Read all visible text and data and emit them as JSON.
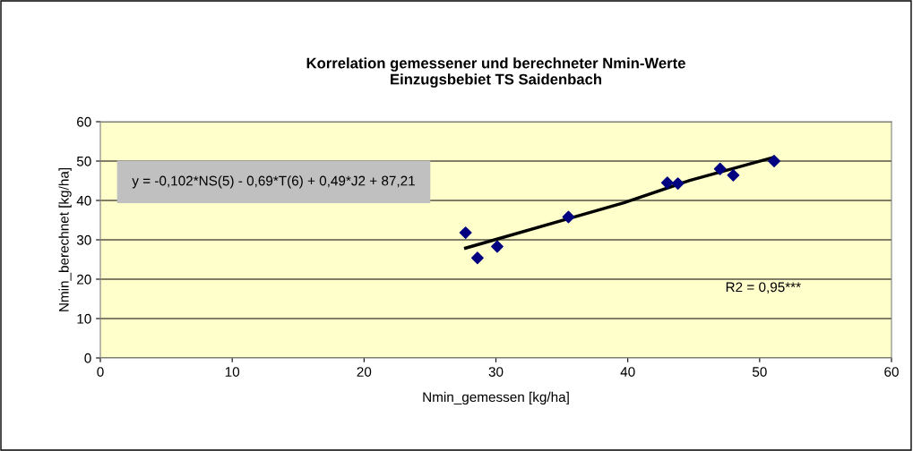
{
  "chart_data": {
    "type": "scatter",
    "title": "Korrelation gemessener und berechneter Nmin-Werte\nEinzugsbebiet TS Saidenbach",
    "xlabel": "Nmin_gemessen [kg/ha]",
    "ylabel": "Nmin_berechnet [kg/ha]",
    "series": [
      {
        "color": "#000080",
        "marker": "diamond",
        "x": [
          27.7,
          28.6,
          30.1,
          35.5,
          43.0,
          43.8,
          47.0,
          48.0,
          51.1
        ],
        "values": [
          31.8,
          25.4,
          28.3,
          35.8,
          44.5,
          44.3,
          48.0,
          46.4,
          50.0
        ]
      },
      {
        "type": "line",
        "color": "#000000",
        "marker": "none",
        "x": [
          27.7,
          39.7,
          44.7,
          51.0
        ],
        "values": [
          27.9,
          39.4,
          45.1,
          50.9
        ]
      }
    ],
    "annotations": [
      "y = -0,102*NS(5) - 0,69*T(6) + 0,49*J2 + 87,21",
      "R2 = 0,95***"
    ],
    "xlim": [
      0,
      60
    ],
    "xticks": [
      0,
      10,
      20,
      30,
      40,
      50,
      60
    ],
    "ylim": [
      0,
      60
    ],
    "yticks": [
      0,
      10,
      20,
      30,
      40,
      50,
      60
    ],
    "grid": "y"
  }
}
